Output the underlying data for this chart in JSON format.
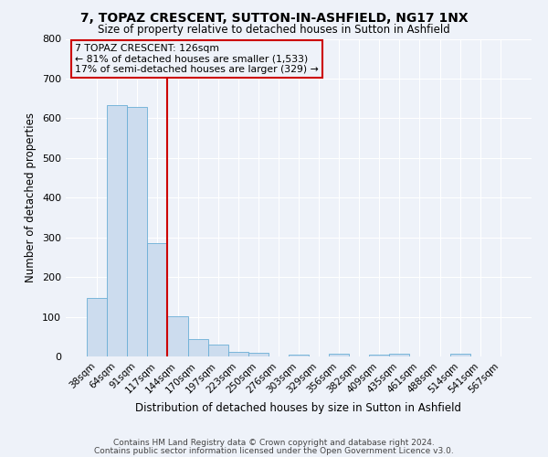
{
  "title": "7, TOPAZ CRESCENT, SUTTON-IN-ASHFIELD, NG17 1NX",
  "subtitle": "Size of property relative to detached houses in Sutton in Ashfield",
  "xlabel": "Distribution of detached houses by size in Sutton in Ashfield",
  "ylabel": "Number of detached properties",
  "bin_labels": [
    "38sqm",
    "64sqm",
    "91sqm",
    "117sqm",
    "144sqm",
    "170sqm",
    "197sqm",
    "223sqm",
    "250sqm",
    "276sqm",
    "303sqm",
    "329sqm",
    "356sqm",
    "382sqm",
    "409sqm",
    "435sqm",
    "461sqm",
    "488sqm",
    "514sqm",
    "541sqm",
    "567sqm"
  ],
  "bar_values": [
    148,
    632,
    628,
    286,
    101,
    44,
    30,
    12,
    10,
    0,
    5,
    0,
    7,
    0,
    5,
    7,
    0,
    0,
    7,
    0,
    0
  ],
  "bar_color": "#ccdcee",
  "bar_edgecolor": "#6aaed6",
  "vline_color": "#cc0000",
  "annotation_title": "7 TOPAZ CRESCENT: 126sqm",
  "annotation_line1": "← 81% of detached houses are smaller (1,533)",
  "annotation_line2": "17% of semi-detached houses are larger (329) →",
  "annotation_box_color": "#cc0000",
  "ylim": [
    0,
    800
  ],
  "yticks": [
    0,
    100,
    200,
    300,
    400,
    500,
    600,
    700,
    800
  ],
  "background_color": "#eef2f9",
  "grid_color": "#ffffff",
  "footer_line1": "Contains HM Land Registry data © Crown copyright and database right 2024.",
  "footer_line2": "Contains public sector information licensed under the Open Government Licence v3.0."
}
